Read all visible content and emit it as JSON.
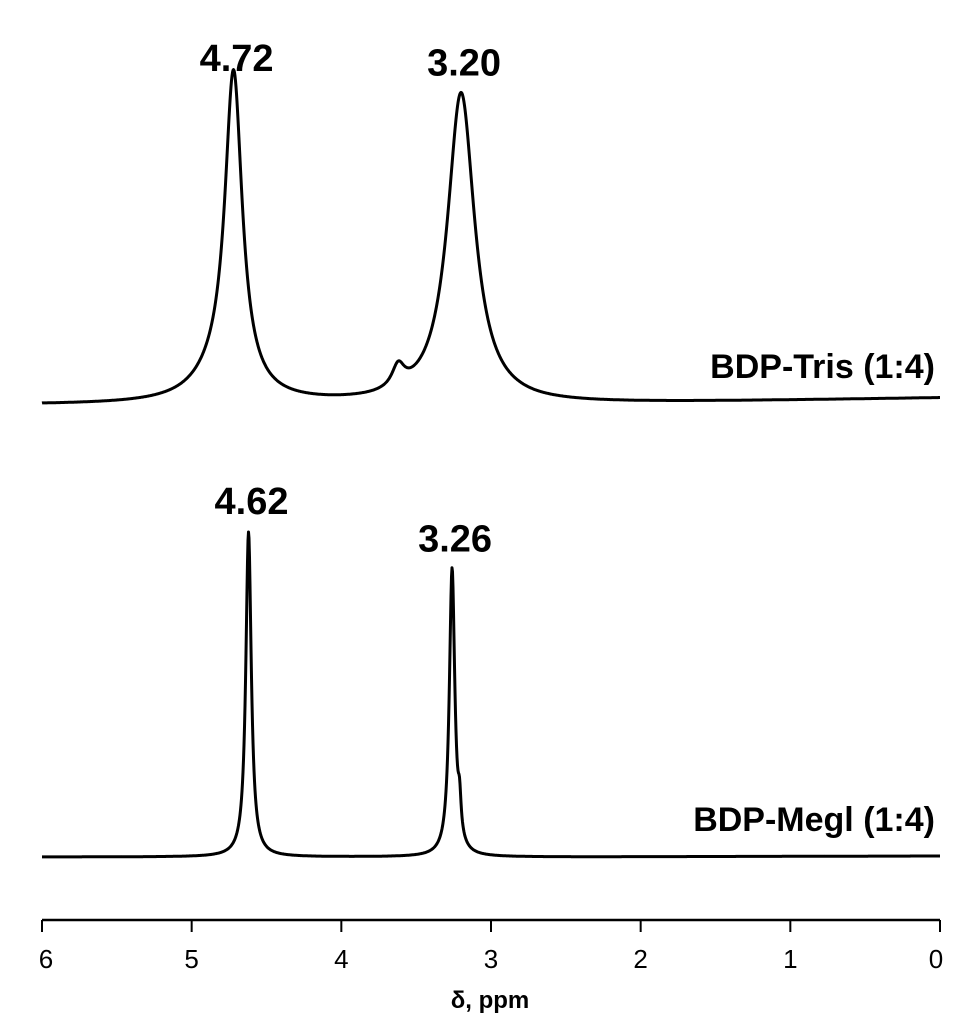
{
  "chart_data": {
    "type": "line",
    "title": "",
    "xlabel": "δ, ppm",
    "ylabel": "",
    "xlim": [
      6,
      0
    ],
    "x_reversed": true,
    "x_ticks": [
      6,
      5,
      4,
      3,
      2,
      1,
      0
    ],
    "x_tick_labels": [
      "6",
      "5",
      "4",
      "3",
      "2",
      "1",
      "0"
    ],
    "grid": false,
    "legend": "none",
    "series": [
      {
        "name": "BDP-Tris (1:4)",
        "line_color": "#000000",
        "peaks": [
          {
            "x": 4.72,
            "label": "4.72",
            "height": 1.0,
            "width": 0.07
          },
          {
            "x": 4.82,
            "height": 0.07,
            "width": 0.2
          },
          {
            "x": 3.2,
            "label": "3.20",
            "height": 0.985,
            "width": 0.11
          },
          {
            "x": 3.62,
            "height": 0.07,
            "width": 0.05
          }
        ]
      },
      {
        "name": "BDP-Megl (1:4)",
        "line_color": "#000000",
        "peaks": [
          {
            "x": 4.62,
            "label": "4.62",
            "height": 1.0,
            "width": 0.022
          },
          {
            "x": 3.26,
            "label": "3.26",
            "height": 0.885,
            "width": 0.022
          },
          {
            "x": 3.21,
            "height": 0.1,
            "width": 0.012
          }
        ]
      }
    ]
  }
}
